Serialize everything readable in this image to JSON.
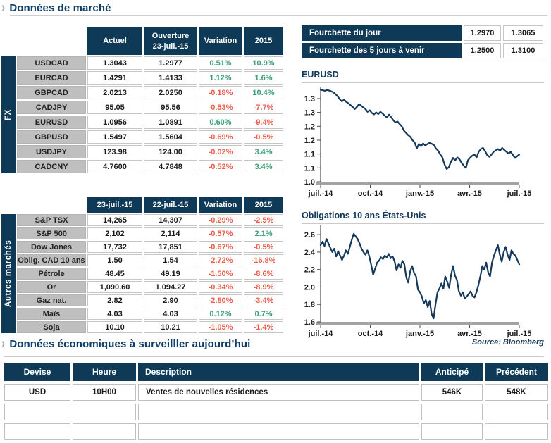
{
  "page": {
    "market_title": "Données de marché",
    "econ_title": "Données économiques à surveilller aujourd’hui",
    "source": "Source: Bloomberg"
  },
  "colors": {
    "navy": "#0e3a57",
    "title_navy": "#0e3d68",
    "green": "#3ea077",
    "red": "#ef5b4a",
    "label_gray": "#bfbfbf",
    "line_navy": "#14395b",
    "axis_gray": "#a3a3a3"
  },
  "fx_table": {
    "sidebar_label": "FX",
    "headers": [
      "Actuel",
      "Ouverture|23-juil.-15",
      "Variation",
      "2015"
    ],
    "rows": [
      [
        "USDCAD",
        "1.3043",
        "1.2977",
        "0.51%",
        "10.9%"
      ],
      [
        "EURCAD",
        "1.4291",
        "1.4133",
        "1.12%",
        "1.6%"
      ],
      [
        "GBPCAD",
        "2.0213",
        "2.0250",
        "-0.18%",
        "10.4%"
      ],
      [
        "CADJPY",
        "95.05",
        "95.56",
        "-0.53%",
        "-7.7%"
      ],
      [
        "EURUSD",
        "1.0956",
        "1.0891",
        "0.60%",
        "-9.4%"
      ],
      [
        "GBPUSD",
        "1.5497",
        "1.5604",
        "-0.69%",
        "-0.5%"
      ],
      [
        "USDJPY",
        "123.98",
        "124.00",
        "-0.02%",
        "3.4%"
      ],
      [
        "CADCNY",
        "4.7600",
        "4.7848",
        "-0.52%",
        "3.4%"
      ]
    ]
  },
  "ranges": {
    "rows": [
      {
        "label": "Fourchette du jour",
        "low": "1.2970",
        "high": "1.3065"
      },
      {
        "label": "Fourchette des 5 jours à venir",
        "low": "1.2500",
        "high": "1.3100"
      }
    ]
  },
  "markets_table": {
    "sidebar_label": "Autres marchés",
    "headers": [
      "23-juil.-15",
      "22-juil.-15",
      "Variation",
      "2015"
    ],
    "rows": [
      [
        "S&P TSX",
        "14,265",
        "14,307",
        "-0.29%",
        "-2.5%"
      ],
      [
        "S&P 500",
        "2,102",
        "2,114",
        "-0.57%",
        "2.1%"
      ],
      [
        "Dow Jones",
        "17,732",
        "17,851",
        "-0.67%",
        "-0.5%"
      ],
      [
        "Oblig. CAD 10 ans",
        "1.50",
        "1.54",
        "-2.72%",
        "-16.8%"
      ],
      [
        "Pétrole",
        "48.45",
        "49.19",
        "-1.50%",
        "-8.6%"
      ],
      [
        "Or",
        "1,090.60",
        "1,094.27",
        "-0.34%",
        "-8.9%"
      ],
      [
        "Gaz nat.",
        "2.82",
        "2.90",
        "-2.80%",
        "-3.4%"
      ],
      [
        "Maïs",
        "4.03",
        "4.03",
        "0.12%",
        "0.7%"
      ],
      [
        "Soja",
        "10.10",
        "10.21",
        "-1.05%",
        "-1.4%"
      ]
    ]
  },
  "econ_table": {
    "headers": [
      "Devise",
      "Heure",
      "Description",
      "Anticipé",
      "Précédent"
    ],
    "rows": [
      [
        "USD",
        "10H00",
        "Ventes de nouvelles résidences",
        "546K",
        "548K"
      ],
      [
        "",
        "",
        "",
        "",
        ""
      ],
      [
        "",
        "",
        "",
        "",
        ""
      ]
    ]
  },
  "chart_data": [
    {
      "type": "line",
      "title": "EURUSD",
      "xlabel": "",
      "ylabel": "",
      "x_tick_labels": [
        "juil.-14",
        "oct.-14",
        "janv.-15",
        "avr.-15",
        "juil.-15"
      ],
      "y_ticks": [
        {
          "v": 1.3,
          "label": "1.3"
        },
        {
          "v": 1.25,
          "label": "1.3"
        },
        {
          "v": 1.2,
          "label": "1.2"
        },
        {
          "v": 1.15,
          "label": "1.2"
        },
        {
          "v": 1.1,
          "label": "1.1"
        },
        {
          "v": 1.05,
          "label": "1.1"
        },
        {
          "v": 1.0,
          "label": "1.0"
        }
      ],
      "ylim": [
        1.0,
        1.338
      ],
      "grid": false,
      "legend": false,
      "line_color": "#14395b",
      "points": [
        1.332,
        1.33,
        1.328,
        1.331,
        1.329,
        1.326,
        1.322,
        1.316,
        1.308,
        1.297,
        1.29,
        1.296,
        1.288,
        1.283,
        1.276,
        1.27,
        1.262,
        1.27,
        1.28,
        1.274,
        1.268,
        1.262,
        1.252,
        1.258,
        1.248,
        1.243,
        1.25,
        1.244,
        1.252,
        1.246,
        1.238,
        1.232,
        1.242,
        1.233,
        1.222,
        1.214,
        1.217,
        1.208,
        1.2,
        1.184,
        1.176,
        1.168,
        1.162,
        1.15,
        1.142,
        1.12,
        1.136,
        1.128,
        1.138,
        1.131,
        1.136,
        1.14,
        1.137,
        1.133,
        1.12,
        1.112,
        1.098,
        1.088,
        1.062,
        1.046,
        1.052,
        1.072,
        1.086,
        1.077,
        1.088,
        1.081,
        1.068,
        1.058,
        1.05,
        1.078,
        1.087,
        1.094,
        1.098,
        1.088,
        1.108,
        1.118,
        1.122,
        1.11,
        1.096,
        1.09,
        1.098,
        1.108,
        1.113,
        1.118,
        1.112,
        1.122,
        1.114,
        1.108,
        1.102,
        1.108,
        1.096,
        1.086,
        1.092,
        1.098
      ]
    },
    {
      "type": "line",
      "title": "Obligations 10 ans États-Unis",
      "xlabel": "",
      "ylabel": "",
      "x_tick_labels": [
        "juil.-14",
        "oct.-14",
        "janv.-15",
        "avr.-15",
        "juil.-15"
      ],
      "y_ticks": [
        {
          "v": 2.6,
          "label": "2.6"
        },
        {
          "v": 2.4,
          "label": "2.4"
        },
        {
          "v": 2.2,
          "label": "2.2"
        },
        {
          "v": 2.0,
          "label": "2.0"
        },
        {
          "v": 1.8,
          "label": "1.8"
        },
        {
          "v": 1.6,
          "label": "1.6"
        }
      ],
      "ylim": [
        1.6,
        2.69
      ],
      "grid": false,
      "legend": false,
      "line_color": "#14395b",
      "points": [
        2.48,
        2.52,
        2.47,
        2.55,
        2.5,
        2.45,
        2.4,
        2.44,
        2.35,
        2.41,
        2.36,
        2.31,
        2.36,
        2.42,
        2.38,
        2.46,
        2.54,
        2.61,
        2.58,
        2.55,
        2.5,
        2.44,
        2.4,
        2.37,
        2.42,
        2.35,
        2.25,
        2.14,
        2.21,
        2.28,
        2.3,
        2.34,
        2.32,
        2.36,
        2.34,
        2.38,
        2.33,
        2.35,
        2.29,
        2.19,
        2.26,
        2.22,
        2.3,
        2.26,
        2.11,
        2.05,
        2.18,
        2.24,
        2.16,
        2.12,
        1.97,
        1.94,
        1.89,
        1.81,
        1.85,
        1.77,
        1.84,
        1.69,
        1.64,
        1.8,
        1.94,
        1.98,
        2.04,
        1.98,
        2.12,
        2.06,
        1.99,
        2.14,
        2.24,
        2.13,
        2.08,
        1.95,
        1.9,
        1.94,
        1.87,
        1.89,
        1.92,
        1.95,
        1.9,
        1.88,
        1.94,
        2.02,
        2.12,
        2.24,
        2.2,
        2.28,
        2.17,
        2.12,
        2.28,
        2.36,
        2.42,
        2.48,
        2.37,
        2.29,
        2.4,
        2.46,
        2.37,
        2.31,
        2.42,
        2.38,
        2.36,
        2.31,
        2.26
      ]
    }
  ]
}
